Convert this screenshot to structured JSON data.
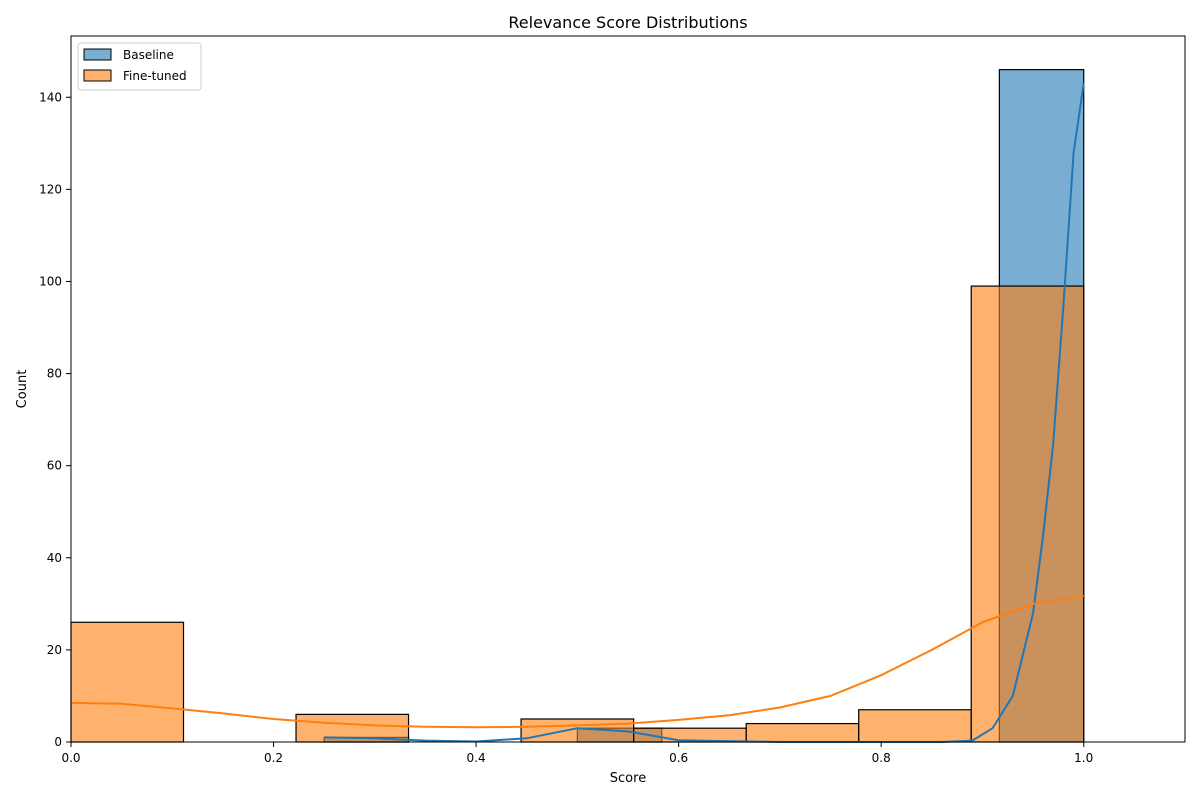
{
  "chart_data": {
    "type": "histogram",
    "title": "Relevance Score Distributions",
    "xlabel": "Score",
    "ylabel": "Count",
    "xlim": [
      0,
      1.1
    ],
    "ylim": [
      0,
      153.3
    ],
    "x_ticks": [
      0.0,
      0.2,
      0.4,
      0.6,
      0.8,
      1.0
    ],
    "x_tick_labels": [
      "0.0",
      "0.2",
      "0.4",
      "0.6",
      "0.8",
      "1.0"
    ],
    "y_ticks": [
      0,
      20,
      40,
      60,
      80,
      100,
      120,
      140
    ],
    "y_tick_labels": [
      "0",
      "20",
      "40",
      "60",
      "80",
      "100",
      "120",
      "140"
    ],
    "grid": false,
    "legend_position": "top-left",
    "series": [
      {
        "name": "Baseline",
        "color": "#1f77b4",
        "bins": [
          {
            "x0": 0.25,
            "x1": 0.3333,
            "count": 1
          },
          {
            "x0": 0.3333,
            "x1": 0.4167,
            "count": 0
          },
          {
            "x0": 0.4167,
            "x1": 0.5,
            "count": 0
          },
          {
            "x0": 0.5,
            "x1": 0.5833,
            "count": 3
          },
          {
            "x0": 0.5833,
            "x1": 0.6667,
            "count": 0
          },
          {
            "x0": 0.6667,
            "x1": 0.75,
            "count": 0
          },
          {
            "x0": 0.75,
            "x1": 0.8333,
            "count": 0
          },
          {
            "x0": 0.8333,
            "x1": 0.9167,
            "count": 0
          },
          {
            "x0": 0.9167,
            "x1": 1.0,
            "count": 146
          }
        ],
        "kde": [
          [
            0.25,
            1.0
          ],
          [
            0.3,
            0.8
          ],
          [
            0.35,
            0.3
          ],
          [
            0.4,
            0.1
          ],
          [
            0.45,
            0.8
          ],
          [
            0.5,
            3.0
          ],
          [
            0.55,
            2.3
          ],
          [
            0.6,
            0.4
          ],
          [
            0.7,
            0.0
          ],
          [
            0.8,
            0.0
          ],
          [
            0.86,
            0.0
          ],
          [
            0.89,
            0.3
          ],
          [
            0.91,
            3.0
          ],
          [
            0.93,
            10.0
          ],
          [
            0.95,
            28.0
          ],
          [
            0.96,
            45.0
          ],
          [
            0.97,
            65.0
          ],
          [
            0.98,
            95.0
          ],
          [
            0.99,
            128.0
          ],
          [
            1.0,
            143.0
          ]
        ]
      },
      {
        "name": "Fine-tuned",
        "color": "#ff7f0e",
        "bins": [
          {
            "x0": 0.0,
            "x1": 0.1111,
            "count": 26
          },
          {
            "x0": 0.1111,
            "x1": 0.2222,
            "count": 0
          },
          {
            "x0": 0.2222,
            "x1": 0.3333,
            "count": 6
          },
          {
            "x0": 0.3333,
            "x1": 0.4444,
            "count": 0
          },
          {
            "x0": 0.4444,
            "x1": 0.5556,
            "count": 5
          },
          {
            "x0": 0.5556,
            "x1": 0.6667,
            "count": 3
          },
          {
            "x0": 0.6667,
            "x1": 0.7778,
            "count": 4
          },
          {
            "x0": 0.7778,
            "x1": 0.8889,
            "count": 7
          },
          {
            "x0": 0.8889,
            "x1": 1.0,
            "count": 99
          }
        ],
        "kde": [
          [
            0.0,
            8.5
          ],
          [
            0.05,
            8.3
          ],
          [
            0.1,
            7.3
          ],
          [
            0.15,
            6.2
          ],
          [
            0.2,
            5.0
          ],
          [
            0.25,
            4.2
          ],
          [
            0.3,
            3.6
          ],
          [
            0.35,
            3.3
          ],
          [
            0.4,
            3.2
          ],
          [
            0.45,
            3.3
          ],
          [
            0.5,
            3.6
          ],
          [
            0.55,
            4.0
          ],
          [
            0.6,
            4.8
          ],
          [
            0.65,
            5.8
          ],
          [
            0.7,
            7.5
          ],
          [
            0.75,
            10.0
          ],
          [
            0.8,
            14.5
          ],
          [
            0.85,
            20.0
          ],
          [
            0.9,
            26.0
          ],
          [
            0.95,
            30.0
          ],
          [
            1.0,
            31.7
          ]
        ]
      }
    ]
  }
}
